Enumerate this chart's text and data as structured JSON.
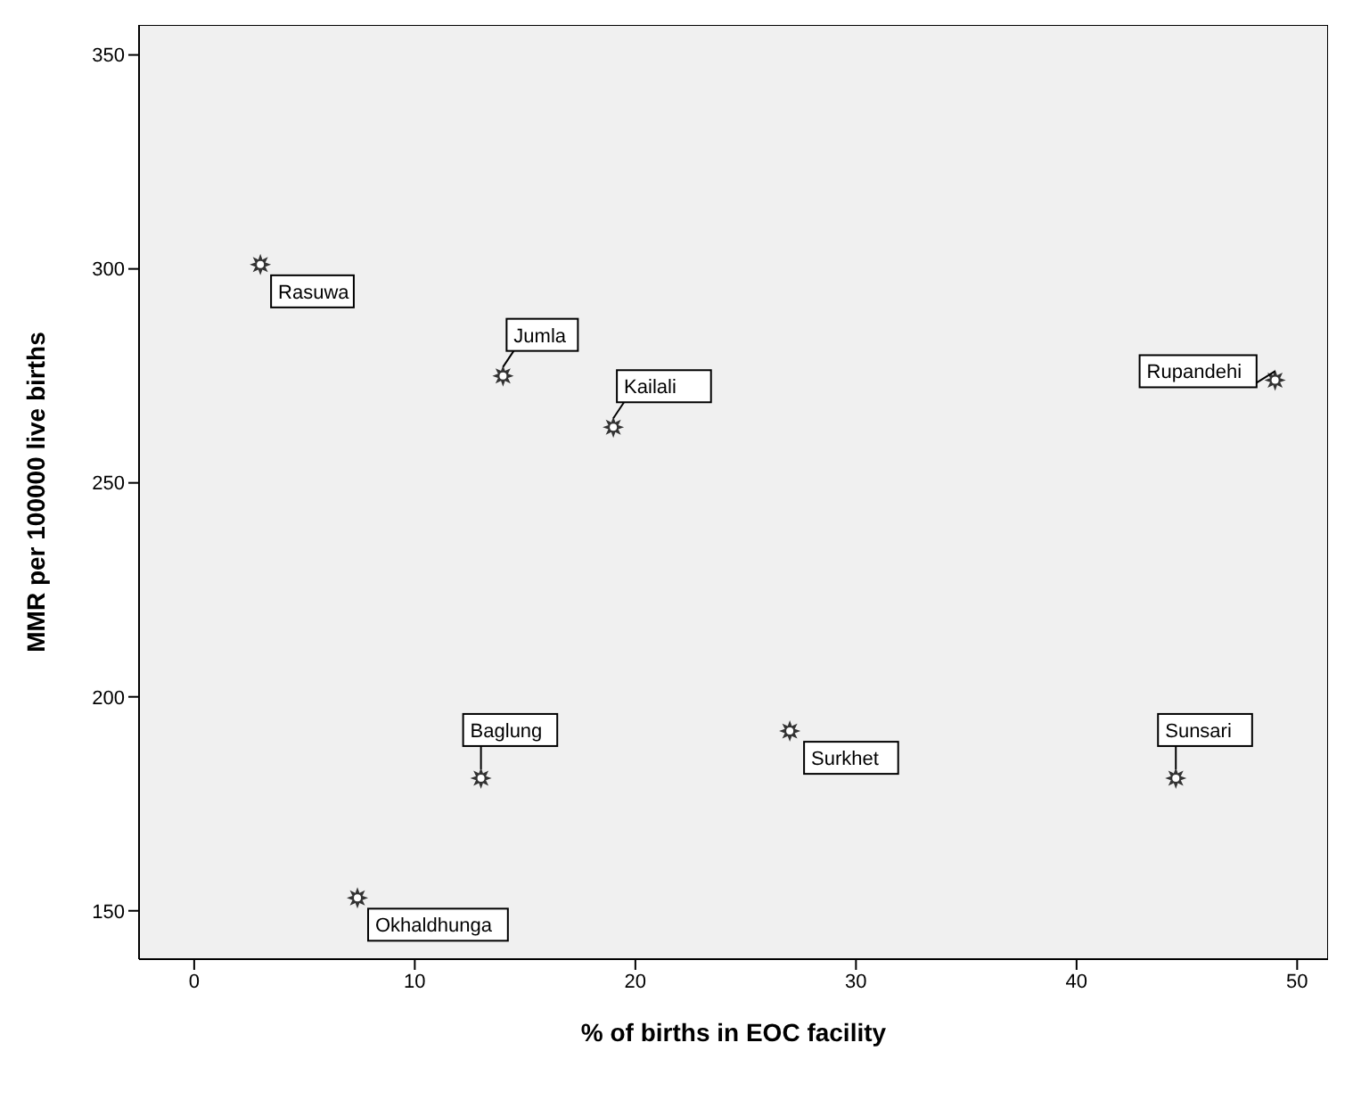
{
  "chart_data": {
    "type": "scatter",
    "xlabel": "% of births in EOC facility",
    "ylabel": "MMR per 100000 live births",
    "x": [
      3,
      14,
      19,
      49,
      13,
      27,
      44.5,
      7.4
    ],
    "values": [
      301,
      275,
      263,
      274,
      181,
      192,
      181,
      153
    ],
    "color": "#333333",
    "marker": "star",
    "xlim": [
      -2.5,
      51.4
    ],
    "ylim": [
      138.7,
      357
    ],
    "xticks": [
      0,
      10,
      20,
      30,
      40,
      50
    ],
    "yticks": [
      150,
      200,
      250,
      300,
      350
    ],
    "annotations": [
      {
        "text": "Rasuwa",
        "x": 3,
        "y": 301
      },
      {
        "text": "Jumla",
        "x": 14,
        "y": 275
      },
      {
        "text": "Kailali",
        "x": 19,
        "y": 263
      },
      {
        "text": "Rupandehi",
        "x": 49,
        "y": 274
      },
      {
        "text": "Baglung",
        "x": 13,
        "y": 181
      },
      {
        "text": "Surkhet",
        "x": 27,
        "y": 192
      },
      {
        "text": "Sunsari",
        "x": 44.5,
        "y": 181
      },
      {
        "text": "Okhaldhunga",
        "x": 7.4,
        "y": 153
      }
    ]
  }
}
